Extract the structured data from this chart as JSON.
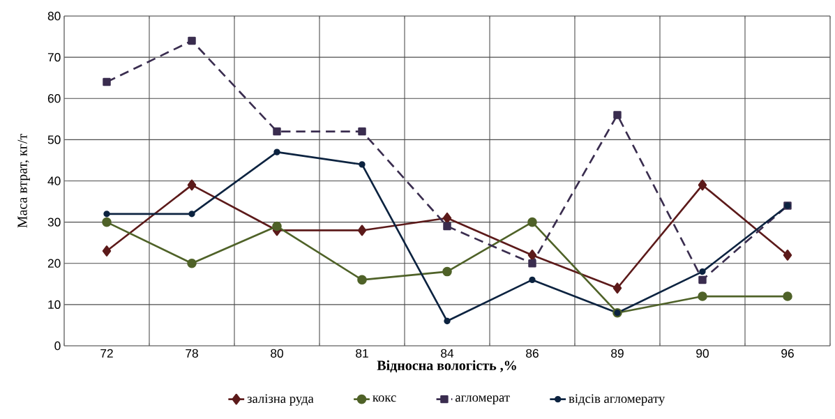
{
  "chart_data": {
    "type": "line",
    "xlabel": "Відносна вологість ,%",
    "ylabel": "Маса втрат, кг/т",
    "categories": [
      "72",
      "78",
      "80",
      "81",
      "84",
      "86",
      "89",
      "90",
      "96"
    ],
    "ylim": [
      0,
      80
    ],
    "yticks": [
      0,
      10,
      20,
      30,
      40,
      50,
      60,
      70,
      80
    ],
    "grid": true,
    "legend": "bottom",
    "series": [
      {
        "name": "залізна руда",
        "color": "#5c1a1a",
        "marker": "diamond",
        "line_style": "solid",
        "values": [
          23,
          39,
          28,
          28,
          31,
          22,
          14,
          39,
          22
        ]
      },
      {
        "name": "кокс",
        "color": "#4f6228",
        "marker": "circle",
        "line_style": "solid",
        "values": [
          30,
          20,
          29,
          16,
          18,
          30,
          8,
          12,
          12
        ]
      },
      {
        "name": "агломерат",
        "color": "#3a2d4f",
        "marker": "square",
        "line_style": "dashed",
        "values": [
          64,
          74,
          52,
          52,
          29,
          20,
          56,
          16,
          34
        ]
      },
      {
        "name": "відсів агломерату",
        "color": "#0c2340",
        "marker": "circle",
        "line_style": "solid",
        "values": [
          32,
          32,
          47,
          44,
          6,
          16,
          8,
          18,
          34
        ]
      }
    ]
  }
}
